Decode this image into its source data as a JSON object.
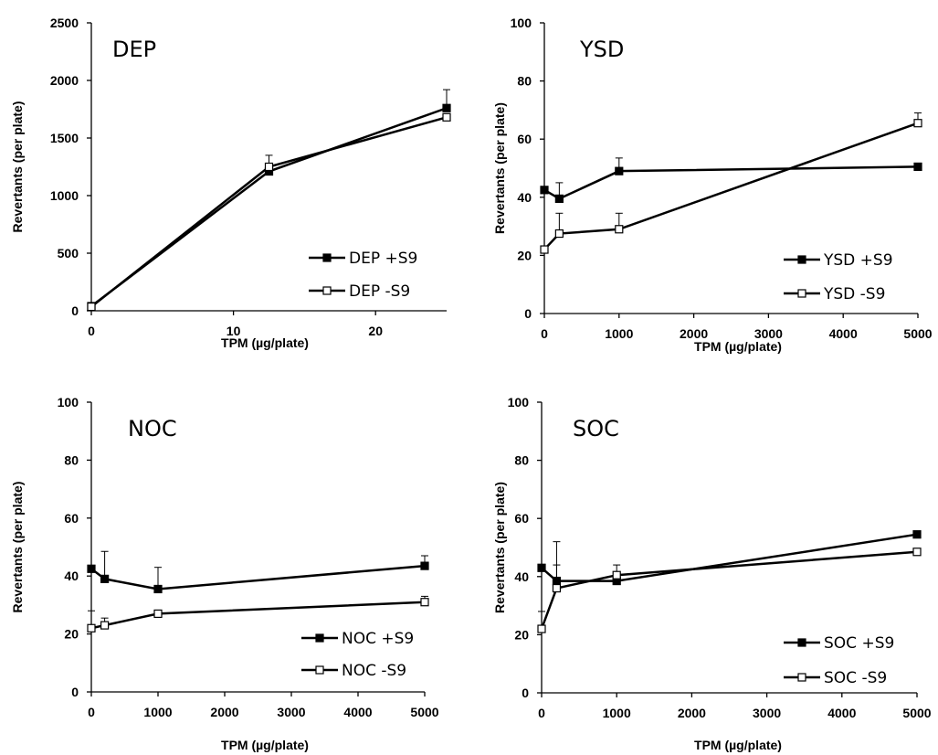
{
  "chart_data": [
    {
      "type": "line",
      "title": "DEP",
      "xlabel": "TPM (µg/plate)",
      "ylabel": "Revertants (per plate)",
      "xlim": [
        0,
        25
      ],
      "ylim": [
        0,
        2500
      ],
      "xticks": [
        0,
        10,
        20
      ],
      "yticks": [
        0,
        500,
        1000,
        1500,
        2000,
        2500
      ],
      "grid": false,
      "legend": "bottom-right",
      "series": [
        {
          "name": "DEP +S9",
          "marker": "filled-square",
          "x": [
            0,
            12.5,
            25
          ],
          "y": [
            40,
            1210,
            1760
          ],
          "err": [
            10,
            60,
            160
          ]
        },
        {
          "name": "DEP -S9",
          "marker": "open-square",
          "x": [
            0,
            12.5,
            25
          ],
          "y": [
            35,
            1250,
            1680
          ],
          "err": [
            10,
            100,
            30
          ]
        }
      ]
    },
    {
      "type": "line",
      "title": "YSD",
      "xlabel": "TPM (µg/plate)",
      "ylabel": "Revertants (per plate)",
      "xlim": [
        0,
        5000
      ],
      "ylim": [
        0,
        100
      ],
      "xticks": [
        0,
        1000,
        2000,
        3000,
        4000,
        5000
      ],
      "yticks": [
        0,
        20,
        40,
        60,
        80,
        100
      ],
      "grid": false,
      "legend": "bottom-right",
      "series": [
        {
          "name": "YSD +S9",
          "marker": "filled-square",
          "x": [
            0,
            200,
            1000,
            5000
          ],
          "y": [
            42.5,
            39.5,
            49,
            50.5
          ],
          "err": [
            0,
            5.5,
            4.5,
            0
          ]
        },
        {
          "name": "YSD -S9",
          "marker": "open-square",
          "x": [
            0,
            200,
            1000,
            5000
          ],
          "y": [
            22,
            27.5,
            29,
            65.5
          ],
          "err": [
            0,
            7,
            5.5,
            3.5
          ]
        }
      ]
    },
    {
      "type": "line",
      "title": "NOC",
      "xlabel": "TPM (µg/plate)",
      "ylabel": "Revertants (per plate)",
      "xlim": [
        0,
        5000
      ],
      "ylim": [
        0,
        100
      ],
      "xticks": [
        0,
        1000,
        2000,
        3000,
        4000,
        5000
      ],
      "yticks": [
        0,
        20,
        40,
        60,
        80,
        100
      ],
      "grid": false,
      "legend": "bottom-right",
      "series": [
        {
          "name": "NOC +S9",
          "marker": "filled-square",
          "x": [
            0,
            200,
            1000,
            5000
          ],
          "y": [
            42.5,
            39,
            35.5,
            43.5
          ],
          "err": [
            0,
            9.5,
            7.5,
            3.5
          ]
        },
        {
          "name": "NOC -S9",
          "marker": "open-square",
          "x": [
            0,
            200,
            1000,
            5000
          ],
          "y": [
            22,
            23,
            27,
            31
          ],
          "err": [
            6,
            2.5,
            0,
            2
          ]
        }
      ]
    },
    {
      "type": "line",
      "title": "SOC",
      "xlabel": "TPM (µg/plate)",
      "ylabel": "Revertants (per plate)",
      "xlim": [
        0,
        5000
      ],
      "ylim": [
        0,
        100
      ],
      "xticks": [
        0,
        1000,
        2000,
        3000,
        4000,
        5000
      ],
      "yticks": [
        0,
        20,
        40,
        60,
        80,
        100
      ],
      "grid": false,
      "legend": "bottom-right",
      "series": [
        {
          "name": "SOC +S9",
          "marker": "filled-square",
          "x": [
            0,
            200,
            1000,
            5000
          ],
          "y": [
            43,
            38.5,
            38.5,
            54.5
          ],
          "err": [
            0,
            5.5,
            0,
            0
          ]
        },
        {
          "name": "SOC -S9",
          "marker": "open-square",
          "x": [
            0,
            200,
            1000,
            5000
          ],
          "y": [
            22,
            36,
            40.5,
            48.5
          ],
          "err": [
            6,
            16,
            3.5,
            0
          ]
        }
      ]
    }
  ]
}
